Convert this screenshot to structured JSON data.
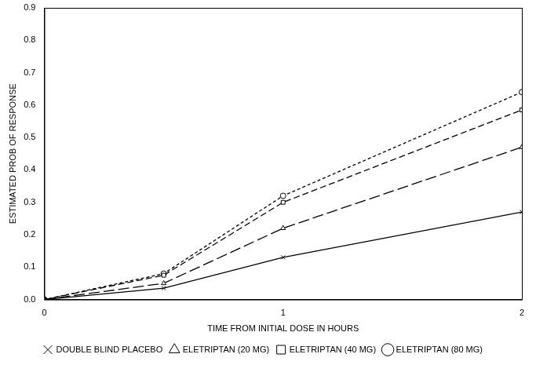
{
  "chart_data": {
    "type": "line",
    "x_label": "TIME FROM INITIAL DOSE IN HOURS",
    "y_label": "ESTIMATED PROB OF RESPONSE",
    "x": [
      0,
      0.5,
      1,
      2
    ],
    "series": [
      {
        "name": "DOUBLE BLIND PLACEBO",
        "color": "#000000",
        "marker": "x",
        "line_style": "solid",
        "values": [
          0,
          0.035,
          0.13,
          0.27
        ]
      },
      {
        "name": "ELETRIPTAN (20 MG)",
        "color": "#000000",
        "marker": "triangle",
        "line_style": "long_dash",
        "values": [
          0,
          0.05,
          0.22,
          0.47
        ]
      },
      {
        "name": "ELETRIPTAN (40 MG)",
        "color": "#000000",
        "marker": "square",
        "line_style": "dash",
        "values": [
          0,
          0.075,
          0.3,
          0.585
        ]
      },
      {
        "name": "ELETRIPTAN (80 MG)",
        "color": "#000000",
        "marker": "circle",
        "line_style": "short_dash",
        "values": [
          0,
          0.08,
          0.32,
          0.64
        ]
      }
    ],
    "xlim": [
      0,
      2
    ],
    "xticks": [
      0,
      1,
      2
    ],
    "ylim": [
      0,
      0.9
    ],
    "yticks": [
      {
        "value": 0,
        "label": "0.0"
      },
      0.1,
      0.2,
      0.3,
      0.4,
      0.5,
      0.6,
      0.7,
      0.8,
      0.9
    ],
    "grid": false,
    "legend": "bottom"
  }
}
